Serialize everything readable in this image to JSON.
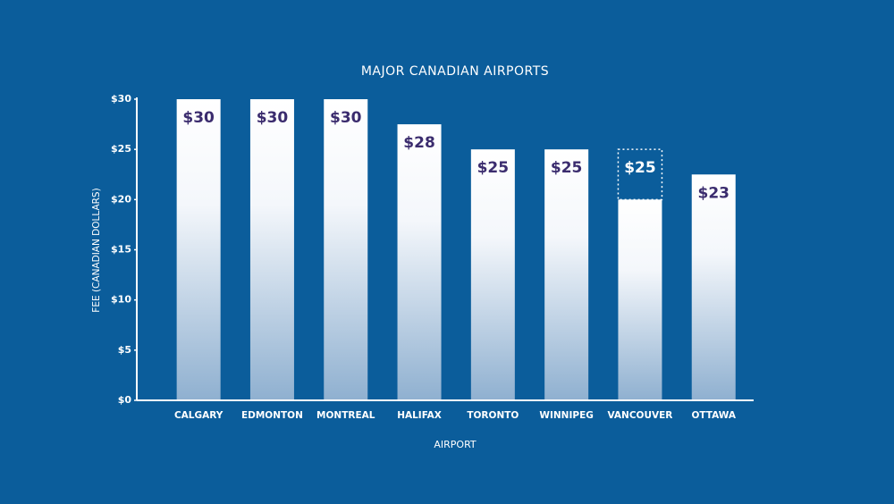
{
  "chart_data": {
    "type": "bar",
    "title": "MAJOR CANADIAN AIRPORTS",
    "x_label": "AIRPORT",
    "y_label": "FEE (CANADIAN DOLLARS)",
    "categories": [
      "CALGARY",
      "EDMONTON",
      "MONTREAL",
      "HALIFAX",
      "TORONTO",
      "WINNIPEG",
      "VANCOUVER",
      "OTTAWA"
    ],
    "values": [
      30,
      30,
      30,
      27.5,
      25,
      25,
      20,
      22.5
    ],
    "value_labels": [
      "$30",
      "$30",
      "$30",
      "$28",
      "$25",
      "$25",
      null,
      "$23"
    ],
    "outline_values": [
      null,
      null,
      null,
      null,
      null,
      null,
      25,
      null
    ],
    "outline_value_labels": [
      null,
      null,
      null,
      null,
      null,
      null,
      "$25",
      null
    ],
    "ylim": [
      0,
      30
    ],
    "yticks": [
      {
        "value": 0,
        "label": "$0"
      },
      {
        "value": 5,
        "label": "$5"
      },
      {
        "value": 10,
        "label": "$10"
      },
      {
        "value": 15,
        "label": "$15"
      },
      {
        "value": 20,
        "label": "$20"
      },
      {
        "value": 25,
        "label": "$25"
      },
      {
        "value": 30,
        "label": "$30"
      }
    ],
    "grid": false
  }
}
